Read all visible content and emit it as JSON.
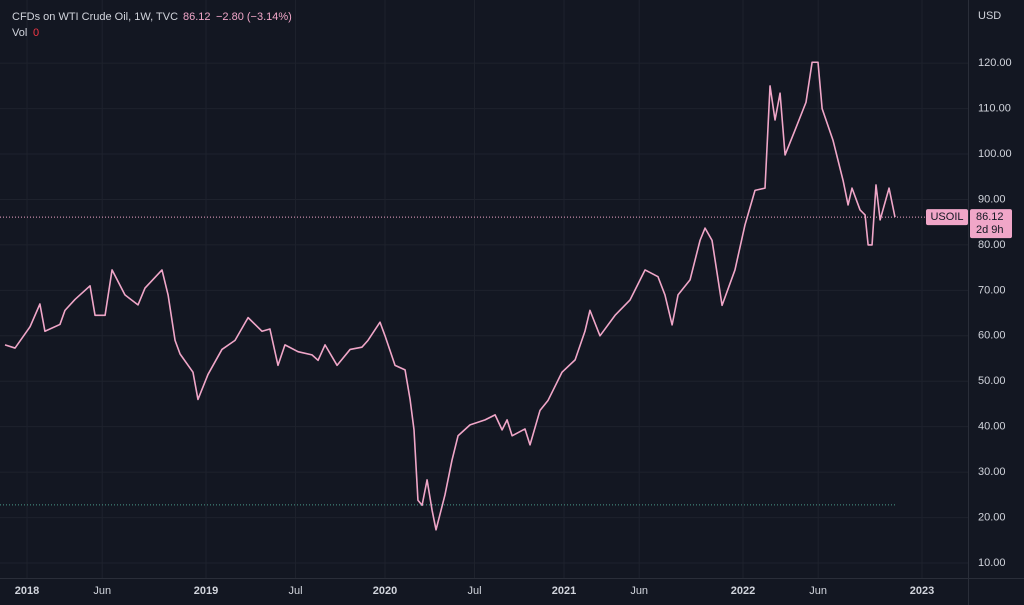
{
  "chart_data": {
    "type": "line",
    "title": "CFDs on WTI Crude Oil, 1W, TVC",
    "last_price": 86.12,
    "change_label": "−2.80 (−3.14%)",
    "volume_label": "Vol",
    "volume": 0,
    "currency": "USD",
    "symbol": "USOIL",
    "countdown": "2d 9h",
    "reference_line": 22.8,
    "grid": true,
    "color": "#f0a6c8",
    "xlim": [
      2017.849,
      2023.257
    ],
    "xticks": [
      {
        "value": 2018,
        "label": "2018"
      },
      {
        "value": 2018.42,
        "label": "Jun"
      },
      {
        "value": 2019,
        "label": "2019"
      },
      {
        "value": 2019.5,
        "label": "Jul"
      },
      {
        "value": 2020,
        "label": "2020"
      },
      {
        "value": 2020.5,
        "label": "Jul"
      },
      {
        "value": 2021,
        "label": "2021"
      },
      {
        "value": 2021.42,
        "label": "Jun"
      },
      {
        "value": 2022,
        "label": "2022"
      },
      {
        "value": 2022.42,
        "label": "Jun"
      },
      {
        "value": 2023,
        "label": "2023"
      }
    ],
    "ylim": [
      6.7,
      133.9
    ],
    "yticks": [
      {
        "value": 10,
        "label": "10.00"
      },
      {
        "value": 20,
        "label": "20.00"
      },
      {
        "value": 30,
        "label": "30.00"
      },
      {
        "value": 40,
        "label": "40.00"
      },
      {
        "value": 50,
        "label": "50.00"
      },
      {
        "value": 60,
        "label": "60.00"
      },
      {
        "value": 70,
        "label": "70.00"
      },
      {
        "value": 80,
        "label": "80.00"
      },
      {
        "value": 90,
        "label": "90.00"
      },
      {
        "value": 100,
        "label": "100.00"
      },
      {
        "value": 110,
        "label": "110.00"
      },
      {
        "value": 120,
        "label": "120.00"
      }
    ],
    "x": [
      2017.877,
      2017.933,
      2018.017,
      2018.072,
      2018.1,
      2018.184,
      2018.212,
      2018.268,
      2018.352,
      2018.38,
      2018.436,
      2018.475,
      2018.547,
      2018.62,
      2018.659,
      2018.754,
      2018.788,
      2018.827,
      2018.855,
      2018.927,
      2018.955,
      2019.011,
      2019.089,
      2019.162,
      2019.235,
      2019.313,
      2019.357,
      2019.402,
      2019.441,
      2019.514,
      2019.592,
      2019.626,
      2019.665,
      2019.732,
      2019.805,
      2019.871,
      2019.905,
      2019.972,
      2020.0,
      2020.056,
      2020.112,
      2020.14,
      2020.162,
      2020.184,
      2020.207,
      2020.235,
      2020.263,
      2020.285,
      2020.335,
      2020.374,
      2020.408,
      2020.475,
      2020.559,
      2020.615,
      2020.654,
      2020.682,
      2020.71,
      2020.782,
      2020.81,
      2020.866,
      2020.911,
      2020.989,
      2021.062,
      2021.117,
      2021.145,
      2021.201,
      2021.285,
      2021.369,
      2021.453,
      2021.525,
      2021.564,
      2021.604,
      2021.637,
      2021.704,
      2021.76,
      2021.788,
      2021.827,
      2021.883,
      2021.955,
      2022.011,
      2022.067,
      2022.123,
      2022.151,
      2022.179,
      2022.207,
      2022.235,
      2022.291,
      2022.352,
      2022.386,
      2022.419,
      2022.442,
      2022.503,
      2022.559,
      2022.587,
      2022.609,
      2022.654,
      2022.682,
      2022.699,
      2022.721,
      2022.743,
      2022.766,
      2022.816,
      2022.849
    ],
    "values": [
      58,
      57.3,
      62,
      67,
      61,
      62.5,
      65.6,
      68,
      71,
      64.5,
      64.5,
      74.5,
      69,
      66.8,
      70.5,
      74.5,
      69,
      59,
      56,
      52,
      46,
      51.5,
      57,
      59,
      64,
      61,
      61.5,
      53.5,
      58,
      56.5,
      55.8,
      54.6,
      58,
      53.5,
      57,
      57.5,
      59,
      63,
      60,
      53.5,
      52.5,
      46,
      39.3,
      23.8,
      22.7,
      28.3,
      21.6,
      17.3,
      25,
      32.6,
      38,
      40.4,
      41.5,
      42.6,
      39.3,
      41.5,
      38,
      39.5,
      36,
      43.6,
      45.8,
      52,
      54.7,
      61,
      65.6,
      60,
      64.5,
      67.9,
      74.5,
      73,
      69,
      62.4,
      69,
      72.3,
      81,
      83.7,
      81,
      66.7,
      74.5,
      84.4,
      92,
      92.5,
      115,
      107.5,
      113.4,
      99.8,
      105.3,
      111.4,
      120.2,
      120.2,
      110,
      103,
      94.2,
      88.8,
      92.5,
      87.7,
      86.6,
      80,
      80,
      93.2,
      85.5,
      92.5,
      86.12
    ]
  }
}
